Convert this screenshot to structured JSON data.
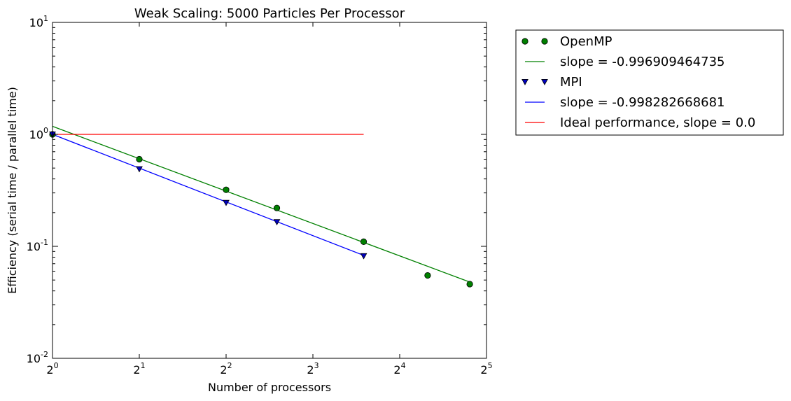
{
  "chart_data": {
    "type": "scatter",
    "title": "Weak Scaling: 5000 Particles Per Processor",
    "xlabel": "Number of processors",
    "ylabel": "Efficiency (serial time / parallel time)",
    "xscale": "log2",
    "yscale": "log10",
    "xlim": [
      1,
      32
    ],
    "ylim": [
      0.01,
      10
    ],
    "x_ticks": [
      {
        "value": 1,
        "base": "2",
        "exp": "0"
      },
      {
        "value": 2,
        "base": "2",
        "exp": "1"
      },
      {
        "value": 4,
        "base": "2",
        "exp": "2"
      },
      {
        "value": 8,
        "base": "2",
        "exp": "3"
      },
      {
        "value": 16,
        "base": "2",
        "exp": "4"
      },
      {
        "value": 32,
        "base": "2",
        "exp": "5"
      }
    ],
    "y_ticks": [
      {
        "value": 0.01,
        "base": "10",
        "exp": "-2"
      },
      {
        "value": 0.1,
        "base": "10",
        "exp": "-1"
      },
      {
        "value": 1,
        "base": "10",
        "exp": "0"
      },
      {
        "value": 10,
        "base": "10",
        "exp": "1"
      }
    ],
    "grid": false,
    "legend_position": "outside-right",
    "series": [
      {
        "name": "OpenMP",
        "kind": "scatter",
        "marker": "circle",
        "color": "#008000",
        "x": [
          1,
          2,
          4,
          6,
          12,
          20,
          28
        ],
        "y": [
          1.0,
          0.6,
          0.32,
          0.22,
          0.11,
          0.055,
          0.046
        ]
      },
      {
        "name": "slope = -0.996909464735",
        "kind": "line",
        "color": "#008000",
        "x": [
          1,
          28
        ],
        "y": [
          1.18,
          0.048
        ]
      },
      {
        "name": "MPI",
        "kind": "scatter",
        "marker": "triangle-down",
        "color": "#0000bf",
        "x": [
          1,
          2,
          4,
          6,
          12
        ],
        "y": [
          1.0,
          0.49,
          0.245,
          0.165,
          0.082
        ]
      },
      {
        "name": "slope = -0.998282668681",
        "kind": "line",
        "color": "#0000ff",
        "x": [
          1,
          12
        ],
        "y": [
          1.0,
          0.083
        ]
      },
      {
        "name": "Ideal performance, slope = 0.0",
        "kind": "line",
        "color": "#ff0000",
        "x": [
          1,
          12
        ],
        "y": [
          1.0,
          1.0
        ]
      }
    ]
  }
}
